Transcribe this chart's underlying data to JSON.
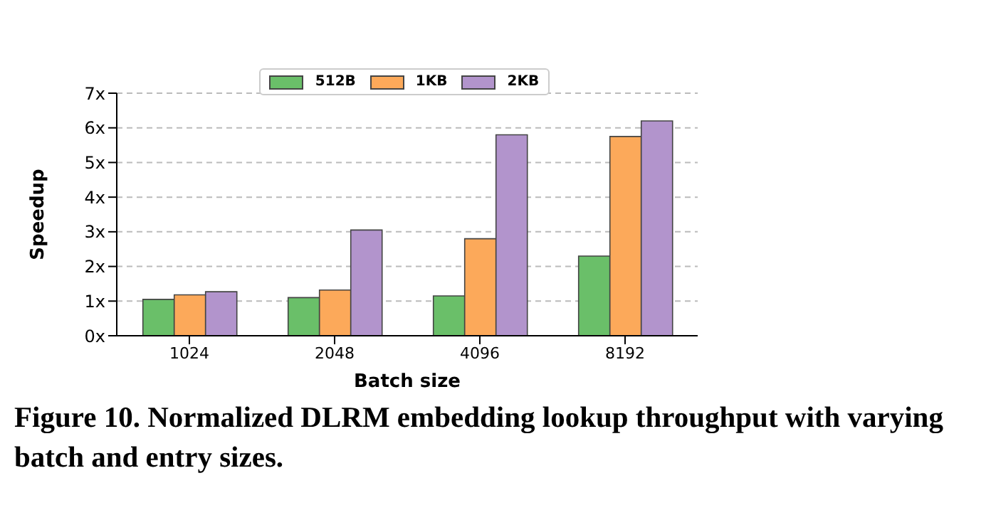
{
  "chart_data": {
    "type": "bar",
    "title": "Figure 10. Normalized DLRM embedding lookup throughput with varying batch and entry sizes.",
    "xlabel": "Batch size",
    "ylabel": "Speedup",
    "categories": [
      "1024",
      "2048",
      "4096",
      "8192"
    ],
    "series": [
      {
        "name": "512B",
        "color": "#6abf69",
        "values": [
          1.05,
          1.1,
          1.15,
          2.3
        ]
      },
      {
        "name": "1KB",
        "color": "#fca95a",
        "values": [
          1.18,
          1.32,
          2.8,
          5.75
        ]
      },
      {
        "name": "2KB",
        "color": "#b294cc",
        "values": [
          1.27,
          3.05,
          5.8,
          6.2
        ]
      }
    ],
    "ylim": [
      0,
      7
    ],
    "yticks": [
      {
        "value": 0,
        "label": "0x"
      },
      {
        "value": 1,
        "label": "1x"
      },
      {
        "value": 2,
        "label": "2x"
      },
      {
        "value": 3,
        "label": "3x"
      },
      {
        "value": 4,
        "label": "4x"
      },
      {
        "value": 5,
        "label": "5x"
      },
      {
        "value": 6,
        "label": "6x"
      },
      {
        "value": 7,
        "label": "7x"
      }
    ],
    "grid": "y",
    "legend": "top"
  }
}
